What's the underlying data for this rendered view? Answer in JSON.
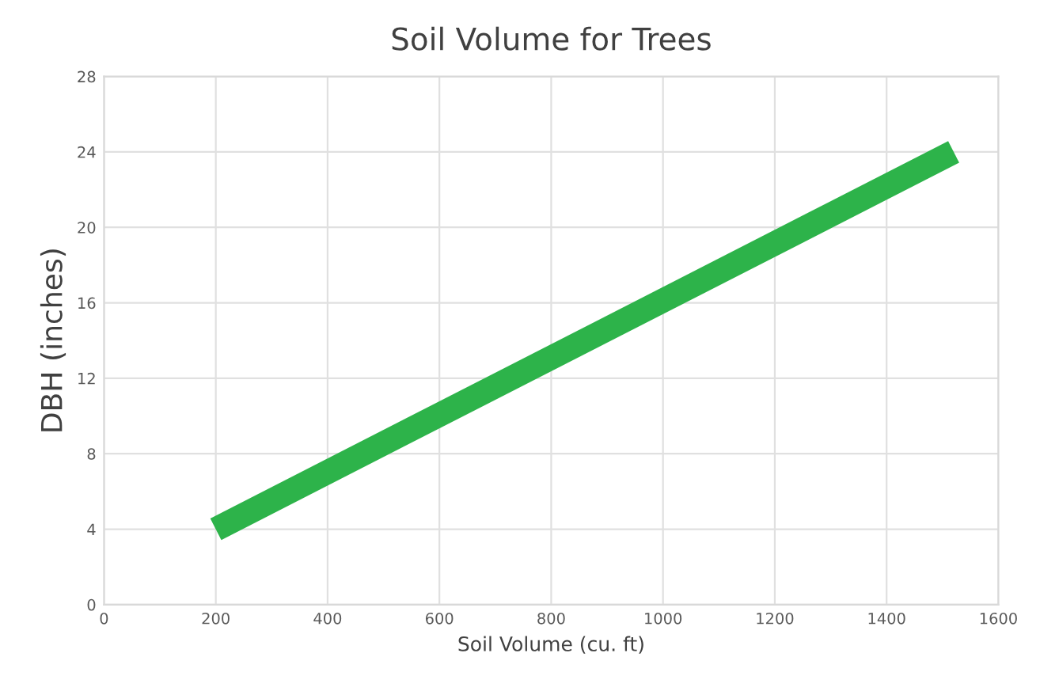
{
  "chart_data": {
    "type": "line",
    "title": "Soil Volume for Trees",
    "xlabel": "Soil Volume (cu. ft)",
    "ylabel": "DBH (inches)",
    "x": [
      200,
      1520
    ],
    "series": [
      {
        "color": "#2db34a",
        "values": [
          4,
          24
        ]
      }
    ],
    "xlim": [
      0,
      1600
    ],
    "ylim": [
      0,
      28
    ],
    "xticks": [
      0,
      200,
      400,
      600,
      800,
      1000,
      1200,
      1400,
      1600
    ],
    "yticks": [
      0,
      4,
      8,
      12,
      16,
      20,
      24,
      28
    ],
    "grid": true,
    "legend": false,
    "marker": "none",
    "line_style": "solid"
  }
}
